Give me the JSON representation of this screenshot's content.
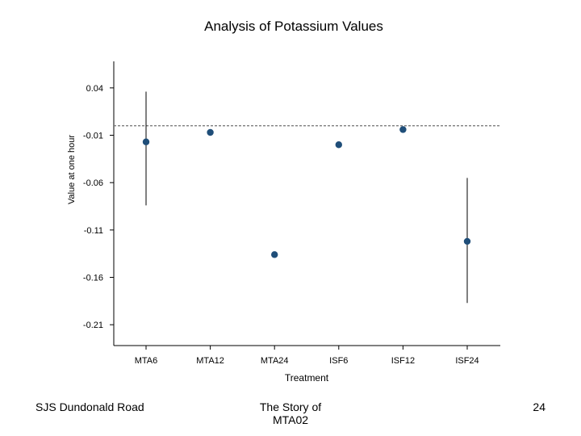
{
  "chart_data": {
    "type": "scatter",
    "title": "Analysis of Potassium Values",
    "xlabel": "Treatment",
    "ylabel": "Value at one hour",
    "categories": [
      "MTA6",
      "MTA12",
      "MTA24",
      "ISF6",
      "ISF12",
      "ISF24"
    ],
    "y_ticks": [
      "0.04",
      "-0.01",
      "-0.06",
      "-0.11",
      "-0.16",
      "-0.21"
    ],
    "ylim": [
      -0.232,
      0.068
    ],
    "reference_line": 0.0,
    "series": [
      {
        "values": [
          -0.017,
          -0.007,
          -0.136,
          -0.02,
          -0.004,
          -0.122
        ],
        "error_low": [
          -0.084,
          null,
          null,
          null,
          null,
          -0.187
        ],
        "error_high": [
          0.036,
          null,
          null,
          null,
          null,
          -0.055
        ]
      }
    ],
    "colors": {
      "points": "#1f4e79",
      "axis": "#000000",
      "reference_line": "#707070"
    }
  },
  "footer": {
    "left": "SJS Dundonald Road",
    "center": "The Story of MTA02",
    "right": "24"
  }
}
